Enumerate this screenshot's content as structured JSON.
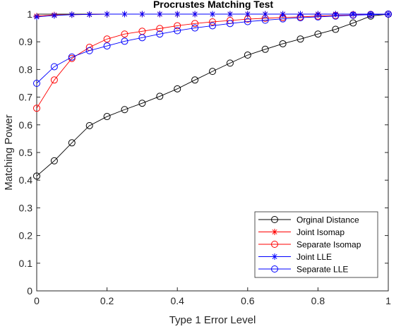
{
  "chart_data": {
    "type": "line",
    "title": "Procrustes Matching Test",
    "xlabel": "Type 1 Error Level",
    "ylabel": "Matching Power",
    "xlim": [
      0,
      1
    ],
    "ylim": [
      0,
      1
    ],
    "x_ticks": [
      "0",
      "0.2",
      "0.4",
      "0.6",
      "0.8",
      "1"
    ],
    "y_ticks": [
      "0",
      "0.1",
      "0.2",
      "0.3",
      "0.4",
      "0.5",
      "0.6",
      "0.7",
      "0.8",
      "0.9",
      "1"
    ],
    "grid": false,
    "legend_position": "bottom-right",
    "x": [
      0,
      0.05,
      0.1,
      0.15,
      0.2,
      0.25,
      0.3,
      0.35,
      0.4,
      0.45,
      0.5,
      0.55,
      0.6,
      0.65,
      0.7,
      0.75,
      0.8,
      0.85,
      0.9,
      0.95,
      1
    ],
    "series": [
      {
        "name": "Orginal Distance",
        "color": "#000000",
        "marker": "circle",
        "values": [
          0.415,
          0.47,
          0.535,
          0.597,
          0.63,
          0.655,
          0.678,
          0.703,
          0.73,
          0.762,
          0.793,
          0.823,
          0.852,
          0.873,
          0.893,
          0.91,
          0.928,
          0.945,
          0.968,
          0.993,
          1.0
        ]
      },
      {
        "name": "Joint Isomap",
        "color": "#ff0000",
        "marker": "star",
        "values": [
          0.993,
          0.997,
          0.998,
          0.999,
          1.0,
          1.0,
          1.0,
          1.0,
          1.0,
          1.0,
          1.0,
          1.0,
          1.0,
          1.0,
          1.0,
          1.0,
          1.0,
          1.0,
          1.0,
          1.0,
          1.0
        ]
      },
      {
        "name": "Separate Isomap",
        "color": "#ff0000",
        "marker": "circle",
        "values": [
          0.66,
          0.762,
          0.84,
          0.88,
          0.91,
          0.928,
          0.938,
          0.948,
          0.958,
          0.966,
          0.972,
          0.977,
          0.982,
          0.985,
          0.988,
          0.99,
          0.993,
          0.995,
          0.997,
          0.999,
          1.0
        ]
      },
      {
        "name": "Joint LLE",
        "color": "#0000ff",
        "marker": "star",
        "values": [
          0.99,
          0.995,
          0.998,
          0.999,
          1.0,
          1.0,
          1.0,
          1.0,
          1.0,
          1.0,
          1.0,
          1.0,
          1.0,
          1.0,
          1.0,
          1.0,
          1.0,
          1.0,
          1.0,
          1.0,
          1.0
        ]
      },
      {
        "name": "Separate LLE",
        "color": "#0000ff",
        "marker": "circle",
        "values": [
          0.75,
          0.81,
          0.845,
          0.868,
          0.885,
          0.902,
          0.915,
          0.928,
          0.94,
          0.95,
          0.958,
          0.966,
          0.973,
          0.978,
          0.983,
          0.987,
          0.99,
          0.993,
          0.996,
          0.998,
          1.0
        ]
      }
    ]
  }
}
